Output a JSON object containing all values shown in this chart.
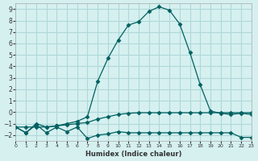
{
  "xlabel": "Humidex (Indice chaleur)",
  "bg_color": "#d6f0f0",
  "grid_color": "#b0d8d8",
  "line_color": "#006060",
  "xlim": [
    0,
    23
  ],
  "ylim": [
    -2.5,
    9.5
  ],
  "yticks": [
    -2,
    -1,
    0,
    1,
    2,
    3,
    4,
    5,
    6,
    7,
    8,
    9
  ],
  "xticks": [
    0,
    1,
    2,
    3,
    4,
    5,
    6,
    7,
    8,
    9,
    10,
    11,
    12,
    13,
    14,
    15,
    16,
    17,
    18,
    19,
    20,
    21,
    22,
    23
  ],
  "main_x": [
    0,
    1,
    2,
    3,
    4,
    5,
    6,
    7,
    8,
    9,
    10,
    11,
    12,
    13,
    14,
    15,
    16,
    17,
    18,
    19,
    20,
    21,
    22,
    23
  ],
  "main_y": [
    -1.3,
    -1.8,
    -1.0,
    -1.3,
    -1.2,
    -1.0,
    -0.8,
    -0.4,
    2.7,
    4.7,
    6.3,
    7.6,
    7.9,
    8.8,
    9.2,
    8.9,
    7.7,
    5.2,
    2.4,
    0.1,
    -0.1,
    -0.2,
    -0.1,
    -0.2
  ],
  "flat_x": [
    0,
    1,
    2,
    3,
    4,
    5,
    6,
    7,
    8,
    9,
    10,
    11,
    12,
    13,
    14,
    15,
    16,
    17,
    18,
    19,
    20,
    21,
    22,
    23
  ],
  "flat_y": [
    -1.3,
    -1.3,
    -1.3,
    -1.3,
    -1.2,
    -1.1,
    -1.0,
    -0.9,
    -0.6,
    -0.4,
    -0.2,
    -0.1,
    -0.05,
    -0.05,
    -0.05,
    -0.05,
    -0.05,
    -0.05,
    -0.05,
    -0.05,
    -0.05,
    -0.05,
    -0.05,
    -0.05
  ],
  "zigzag_x": [
    0,
    1,
    2,
    3,
    4,
    5,
    6,
    7,
    8,
    9,
    10,
    11,
    12,
    13,
    14,
    15,
    16,
    17,
    18,
    19,
    20,
    21,
    22,
    23
  ],
  "zigzag_y": [
    -1.3,
    -1.8,
    -1.1,
    -1.8,
    -1.3,
    -1.7,
    -1.3,
    -2.3,
    -2.0,
    -1.9,
    -1.7,
    -1.8,
    -1.8,
    -1.8,
    -1.8,
    -1.8,
    -1.8,
    -1.8,
    -1.8,
    -1.8,
    -1.8,
    -1.8,
    -2.2,
    -2.2
  ]
}
